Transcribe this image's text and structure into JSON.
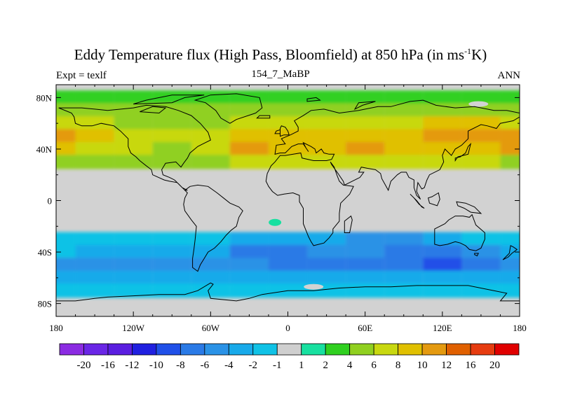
{
  "figure": {
    "title_main": "Eddy Temperature flux (High Pass, Bloomfield) at 850 hPa (in ms",
    "title_sup": "-1",
    "title_end": "K)",
    "subtitle_left": "Expt = texlf",
    "subtitle_center": "154_7_MaBP",
    "subtitle_right": "ANN"
  },
  "chart_data": {
    "type": "heatmap",
    "projection": "cylindrical-equidistant",
    "x_range": [
      -180,
      180
    ],
    "y_range": [
      -90,
      90
    ],
    "x_ticks": [
      {
        "value": -180,
        "label": "180"
      },
      {
        "value": -120,
        "label": "120W"
      },
      {
        "value": -60,
        "label": "60W"
      },
      {
        "value": 0,
        "label": "0"
      },
      {
        "value": 60,
        "label": "60E"
      },
      {
        "value": 120,
        "label": "120E"
      },
      {
        "value": 180,
        "label": "180"
      }
    ],
    "y_ticks": [
      {
        "value": 80,
        "label": "80N"
      },
      {
        "value": 40,
        "label": "40N"
      },
      {
        "value": 0,
        "label": "0"
      },
      {
        "value": -40,
        "label": "40S"
      },
      {
        "value": -80,
        "label": "80S"
      }
    ],
    "colorbar": {
      "labels": [
        "-20",
        "-16",
        "-12",
        "-10",
        "-8",
        "-6",
        "-4",
        "-2",
        "-1",
        "1",
        "2",
        "4",
        "6",
        "8",
        "10",
        "12",
        "16",
        "20"
      ],
      "colors": [
        "#8b2be2",
        "#6a26e6",
        "#5a1ee0",
        "#2020e0",
        "#2050e8",
        "#2a7ae6",
        "#2a92e6",
        "#18aaea",
        "#10c2e6",
        "#cfcfcf",
        "#18e0a0",
        "#30d020",
        "#90d020",
        "#c8d810",
        "#e0c000",
        "#e49a10",
        "#e06000",
        "#e63c10",
        "#e00000"
      ]
    },
    "field_samples": [
      {
        "lat": 80,
        "values": [
          2,
          2,
          2,
          2,
          2,
          2,
          2,
          2,
          2,
          2,
          2,
          2,
          2
        ]
      },
      {
        "lat": 70,
        "values": [
          4,
          4,
          4,
          4,
          4,
          4,
          4,
          4,
          4,
          4,
          4,
          4,
          4
        ]
      },
      {
        "lat": 60,
        "values": [
          6,
          6,
          4,
          4,
          4,
          6,
          6,
          6,
          6,
          6,
          8,
          8,
          6
        ]
      },
      {
        "lat": 50,
        "values": [
          10,
          8,
          6,
          6,
          6,
          8,
          8,
          8,
          8,
          8,
          10,
          10,
          10
        ]
      },
      {
        "lat": 40,
        "values": [
          8,
          6,
          6,
          4,
          6,
          10,
          8,
          8,
          10,
          8,
          8,
          8,
          10
        ]
      },
      {
        "lat": 30,
        "values": [
          4,
          4,
          4,
          4,
          4,
          6,
          6,
          6,
          6,
          6,
          6,
          6,
          4
        ]
      },
      {
        "lat": -30,
        "values": [
          -1,
          -1,
          -2,
          -2,
          -2,
          -4,
          -4,
          -4,
          -6,
          -6,
          -4,
          -2,
          -1
        ]
      },
      {
        "lat": -40,
        "values": [
          -2,
          -4,
          -4,
          -4,
          -4,
          -8,
          -8,
          -6,
          -6,
          -8,
          -8,
          -6,
          -4
        ]
      },
      {
        "lat": -50,
        "values": [
          -6,
          -6,
          -6,
          -6,
          -6,
          -6,
          -8,
          -8,
          -8,
          -8,
          -10,
          -8,
          -6
        ]
      },
      {
        "lat": -60,
        "values": [
          -4,
          -4,
          -4,
          -4,
          -4,
          -4,
          -4,
          -4,
          -4,
          -4,
          -4,
          -4,
          -4
        ]
      },
      {
        "lat": -70,
        "values": [
          -2,
          -2,
          -2,
          -2,
          -2,
          -2,
          -2,
          -2,
          -2,
          -2,
          -2,
          -2,
          -2
        ]
      }
    ],
    "sample_lons": [
      -180,
      -150,
      -120,
      -90,
      -60,
      -30,
      0,
      30,
      60,
      90,
      120,
      150,
      180
    ],
    "background_color": "#d2d2d2",
    "coastline_color": "#000000"
  }
}
